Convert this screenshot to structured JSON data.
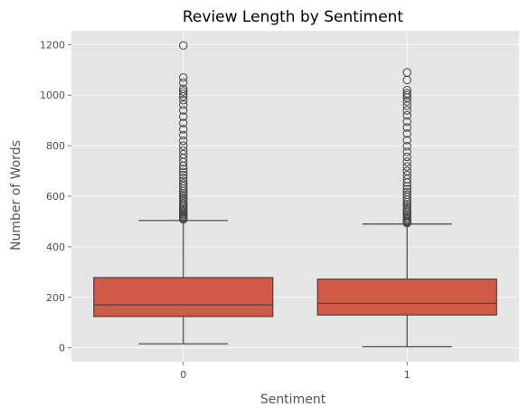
{
  "chart_data": {
    "type": "box",
    "title": "Review Length by Sentiment",
    "xlabel": "Sentiment",
    "ylabel": "Number of Words",
    "categories": [
      "0",
      "1"
    ],
    "ylim": [
      -55,
      1255
    ],
    "yticks": [
      0,
      200,
      400,
      600,
      800,
      1000,
      1200
    ],
    "ytick_labels": [
      "0",
      "200",
      "400",
      "600",
      "800",
      "1000",
      "1200"
    ],
    "grid": true,
    "colors": {
      "box_fill": "#D15A47",
      "box_edge": "#444444",
      "background": "#E5E5E5",
      "grid": "#FFFFFF"
    },
    "boxes": [
      {
        "category": "0",
        "whisker_low": 16,
        "q1": 124,
        "median": 170,
        "q3": 278,
        "whisker_high": 504,
        "outliers": [
          508,
          512,
          516,
          520,
          525,
          530,
          535,
          540,
          546,
          552,
          558,
          565,
          572,
          580,
          588,
          596,
          604,
          612,
          620,
          630,
          640,
          650,
          660,
          672,
          684,
          696,
          708,
          720,
          735,
          750,
          766,
          782,
          800,
          820,
          842,
          865,
          890,
          915,
          940,
          962,
          980,
          995,
          1005,
          1015,
          1025,
          1050,
          1070,
          1197
        ]
      },
      {
        "category": "1",
        "whisker_low": 4,
        "q1": 130,
        "median": 176,
        "q3": 272,
        "whisker_high": 490,
        "outliers": [
          494,
          498,
          502,
          507,
          512,
          518,
          524,
          530,
          537,
          544,
          552,
          560,
          568,
          577,
          586,
          596,
          606,
          616,
          628,
          640,
          654,
          668,
          684,
          700,
          718,
          736,
          756,
          776,
          798,
          822,
          848,
          872,
          896,
          920,
          940,
          958,
          975,
          990,
          1000,
          1008,
          1020,
          1060,
          1090
        ]
      }
    ]
  }
}
